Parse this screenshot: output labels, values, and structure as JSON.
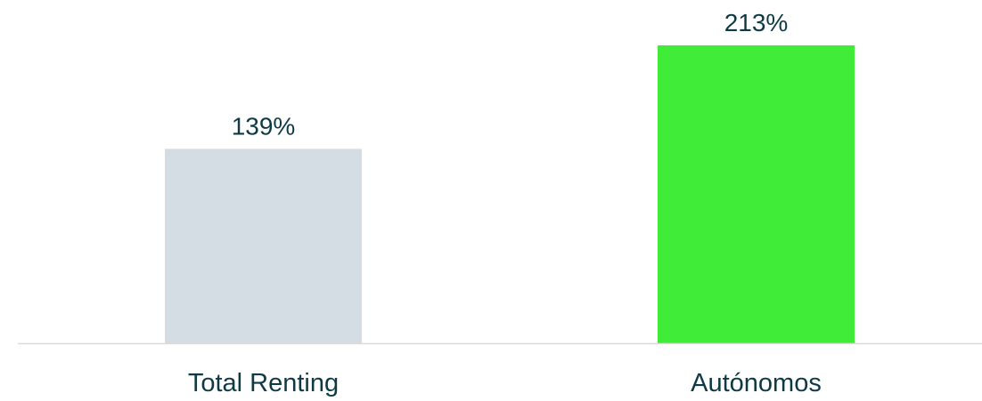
{
  "chart_data": {
    "type": "bar",
    "categories": [
      "Total Renting",
      "Autónomos"
    ],
    "values": [
      139,
      213
    ],
    "value_labels": [
      "139%",
      "213%"
    ],
    "colors": [
      "#d4dce4",
      "#41ec39"
    ],
    "text_color": "#0f3a45",
    "baseline_color": "#d9d9d9",
    "title": "",
    "xlabel": "",
    "ylabel": "",
    "ylim": [
      0,
      230
    ],
    "grid": false,
    "legend": "none"
  }
}
